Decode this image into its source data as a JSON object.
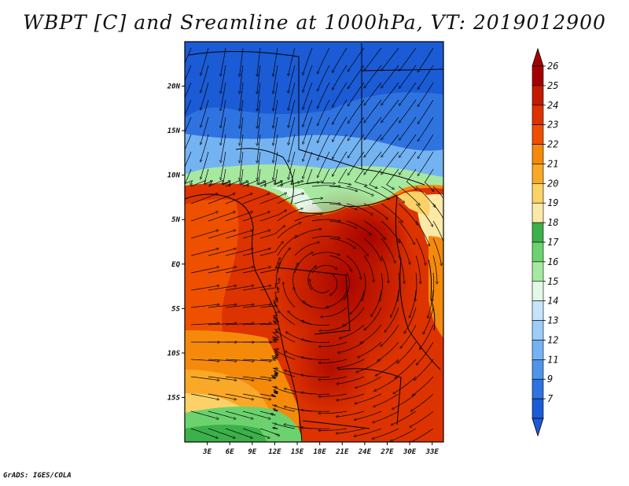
{
  "title": "WBPT [C] and Sreamline at 1000hPa, VT: 2019012900",
  "credit": "GrADS: IGES/COLA",
  "map": {
    "lat_labels": [
      "20N",
      "15N",
      "10N",
      "5N",
      "EQ",
      "5S",
      "10S",
      "15S"
    ],
    "lat_values": [
      20,
      15,
      10,
      5,
      0,
      -5,
      -10,
      -15
    ],
    "lon_labels": [
      "3E",
      "6E",
      "9E",
      "12E",
      "15E",
      "18E",
      "21E",
      "24E",
      "27E",
      "30E",
      "33E"
    ],
    "lon_values": [
      3,
      6,
      9,
      12,
      15,
      18,
      21,
      24,
      27,
      30,
      33
    ],
    "lon_range": [
      0,
      34.5
    ],
    "lat_range": [
      -20,
      25
    ]
  },
  "colorbar": {
    "labels": [
      "26",
      "25",
      "24",
      "23",
      "22",
      "21",
      "20",
      "19",
      "18",
      "17",
      "16",
      "15",
      "14",
      "13",
      "12",
      "11",
      "9",
      "7"
    ],
    "colors": [
      "#a40000",
      "#c31a00",
      "#dd3300",
      "#ee5000",
      "#f58a0a",
      "#f9a828",
      "#fcd167",
      "#fde9a6",
      "#3cb04a",
      "#6cd26e",
      "#a6e8a0",
      "#e3f7e6",
      "#c6e3fb",
      "#9ccdf8",
      "#74b3f2",
      "#4e95ea",
      "#2f73e0",
      "#1b5bd5"
    ]
  }
}
